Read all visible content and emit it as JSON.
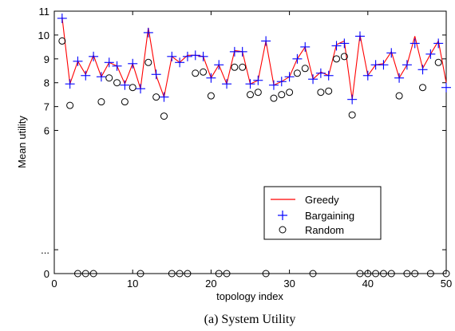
{
  "chart_data": {
    "type": "line",
    "title": "",
    "caption": "(a) System Utility",
    "xlabel": "topology index",
    "ylabel": "Mean utility",
    "xlim": [
      0,
      50
    ],
    "ylim": [
      0,
      11
    ],
    "xticks": [
      0,
      10,
      20,
      30,
      40,
      50
    ],
    "yticks": [
      {
        "value": 0,
        "label": "0"
      },
      {
        "value": 1,
        "label": "..."
      },
      {
        "value": 6,
        "label": "6"
      },
      {
        "value": 7,
        "label": "7"
      },
      {
        "value": 8,
        "label": "8"
      },
      {
        "value": 9,
        "label": "9"
      },
      {
        "value": 10,
        "label": "10"
      },
      {
        "value": 11,
        "label": "11"
      }
    ],
    "legend_position": "lower-right",
    "colors": {
      "greedy": "#ff0000",
      "bargaining": "#0000ff",
      "random": "#000000"
    },
    "x": [
      1,
      2,
      3,
      4,
      5,
      6,
      7,
      8,
      9,
      10,
      11,
      12,
      13,
      14,
      15,
      16,
      17,
      18,
      19,
      20,
      21,
      22,
      23,
      24,
      25,
      26,
      27,
      28,
      29,
      30,
      31,
      32,
      33,
      34,
      35,
      36,
      37,
      38,
      39,
      40,
      41,
      42,
      43,
      44,
      45,
      46,
      47,
      48,
      49,
      50
    ],
    "series": [
      {
        "name": "Greedy",
        "marker": "line",
        "values": [
          10.75,
          7.95,
          8.9,
          8.35,
          9.15,
          8.25,
          8.85,
          8.7,
          7.95,
          8.8,
          7.75,
          10.3,
          8.3,
          7.4,
          9.1,
          8.85,
          9.15,
          9.15,
          9.1,
          8.2,
          8.75,
          7.95,
          9.35,
          9.3,
          7.95,
          8.1,
          9.75,
          7.9,
          8.05,
          8.25,
          9.0,
          9.5,
          8.15,
          8.45,
          8.3,
          9.6,
          9.75,
          7.3,
          10.0,
          8.3,
          8.75,
          8.8,
          9.3,
          8.2,
          8.75,
          9.95,
          8.6,
          9.2,
          9.75,
          8.0
        ]
      },
      {
        "name": "Bargaining",
        "marker": "plus",
        "values": [
          10.7,
          7.95,
          8.9,
          8.3,
          9.1,
          8.25,
          8.85,
          8.7,
          7.9,
          8.8,
          7.75,
          10.1,
          8.35,
          7.4,
          9.1,
          8.85,
          9.1,
          9.15,
          9.1,
          8.2,
          8.75,
          7.95,
          9.3,
          9.3,
          7.95,
          8.1,
          9.75,
          7.9,
          8.05,
          8.25,
          9.0,
          9.5,
          8.15,
          8.4,
          8.3,
          9.55,
          9.65,
          7.3,
          9.95,
          8.3,
          8.75,
          8.75,
          9.25,
          8.2,
          8.75,
          9.65,
          8.55,
          9.2,
          9.65,
          7.8
        ]
      },
      {
        "name": "Random",
        "marker": "circle",
        "values": [
          9.75,
          7.05,
          0,
          0,
          0,
          7.2,
          8.2,
          8.0,
          7.2,
          7.8,
          0,
          8.85,
          7.4,
          6.6,
          0,
          0,
          0,
          8.4,
          8.45,
          7.45,
          0,
          0,
          8.65,
          8.65,
          7.5,
          7.6,
          0,
          7.35,
          7.5,
          7.6,
          8.4,
          8.6,
          0,
          7.6,
          7.65,
          9.0,
          9.1,
          6.65,
          0,
          0,
          0,
          0,
          0,
          7.45,
          0,
          0,
          7.8,
          0,
          8.85,
          0
        ]
      }
    ]
  }
}
